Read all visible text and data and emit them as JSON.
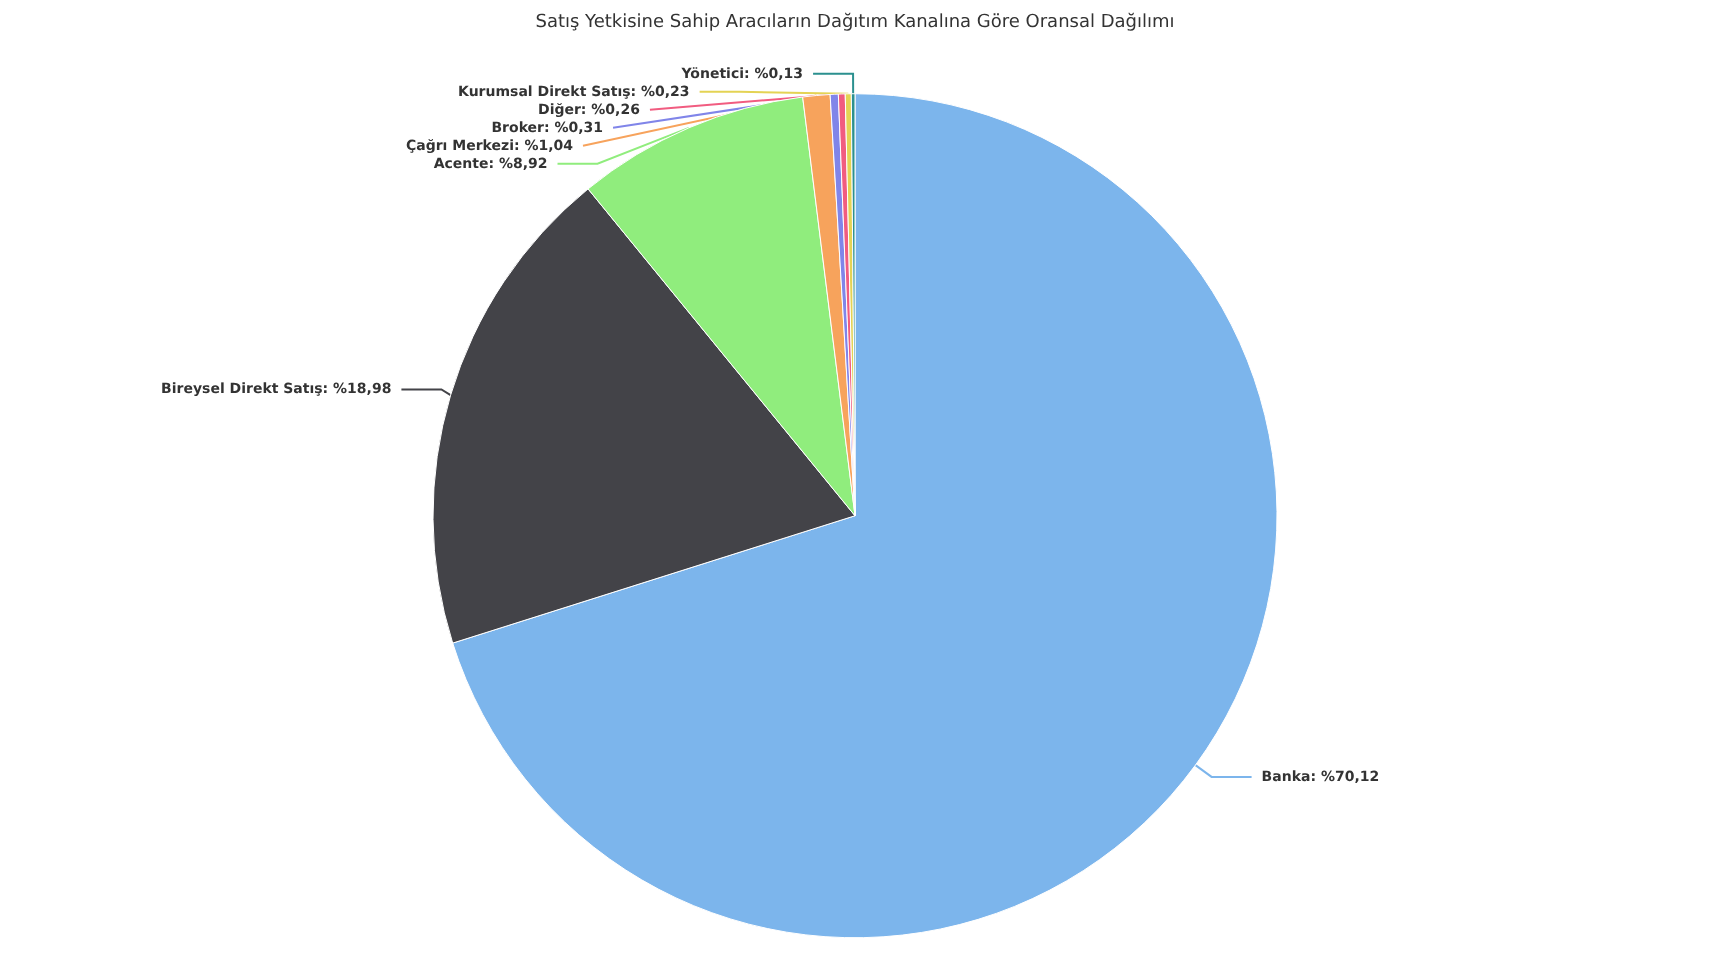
{
  "chart_data": {
    "type": "pie",
    "title": "Satış Yetkisine Sahip Aracıların Dağıtım Kanalına Göre Oransal Dağılımı",
    "categories": [
      "Banka",
      "Bireysel Direkt Satış",
      "Acente",
      "Çağrı Merkezi",
      "Broker",
      "Diğer",
      "Kurumsal Direkt Satış",
      "Yönetici"
    ],
    "values": [
      70.12,
      18.98,
      8.92,
      1.04,
      0.31,
      0.26,
      0.23,
      0.13
    ],
    "value_labels": [
      "%70,12",
      "%18,98",
      "%8,92",
      "%1,04",
      "%0,31",
      "%0,26",
      "%0,23",
      "%0,13"
    ],
    "colors": [
      "#7cb5ec",
      "#434348",
      "#90ed7d",
      "#f7a35c",
      "#8085e9",
      "#f15c80",
      "#e4d354",
      "#2b908f"
    ],
    "legend": false
  }
}
